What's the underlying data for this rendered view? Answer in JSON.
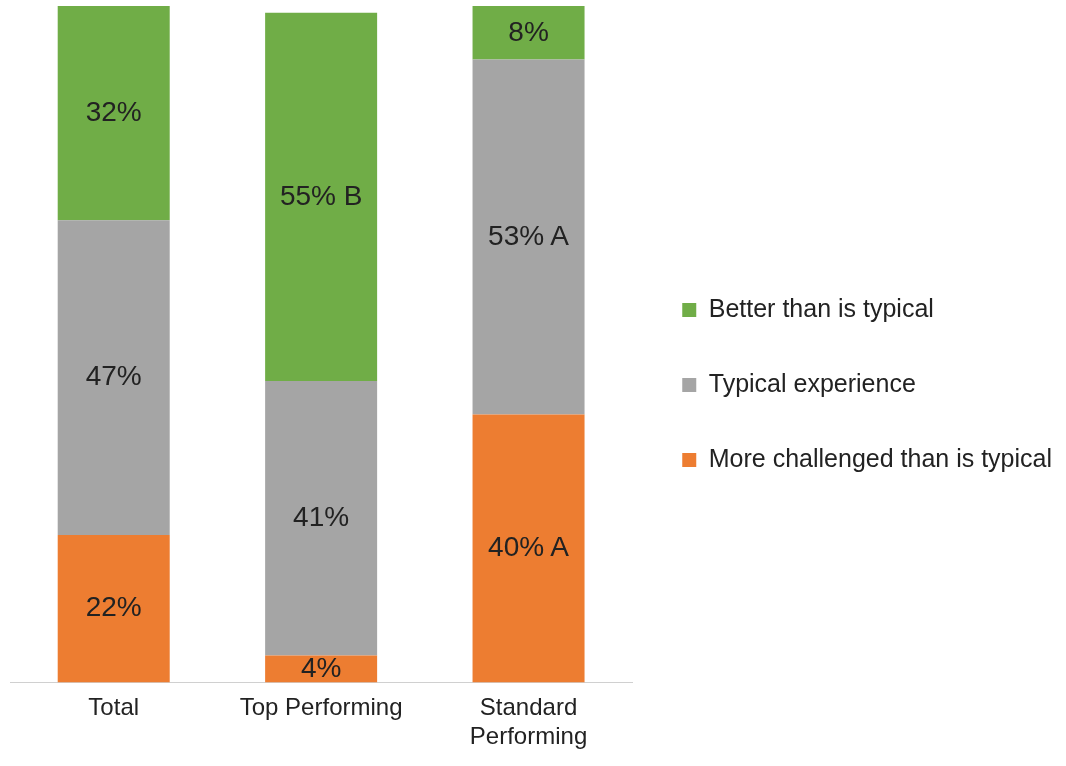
{
  "chart_data": {
    "type": "bar",
    "stacked": true,
    "categories": [
      "Total",
      "Top Performing",
      "Standard Performing"
    ],
    "series": [
      {
        "name": "More challenged than is typical",
        "color": "#ed7d31",
        "values": [
          22,
          4,
          40
        ],
        "value_labels": [
          "22%",
          "4%",
          "40% A"
        ]
      },
      {
        "name": "Typical experience",
        "color": "#a5a5a5",
        "values": [
          47,
          41,
          53
        ],
        "value_labels": [
          "47%",
          "41%",
          "53% A"
        ]
      },
      {
        "name": "Better than is typical",
        "color": "#70ad47",
        "values": [
          32,
          55,
          8
        ],
        "value_labels": [
          "32%",
          "55% B",
          "8%"
        ]
      }
    ],
    "ylim": [
      0,
      101
    ],
    "tick_labels": "x",
    "grid": false,
    "legend": "right"
  }
}
